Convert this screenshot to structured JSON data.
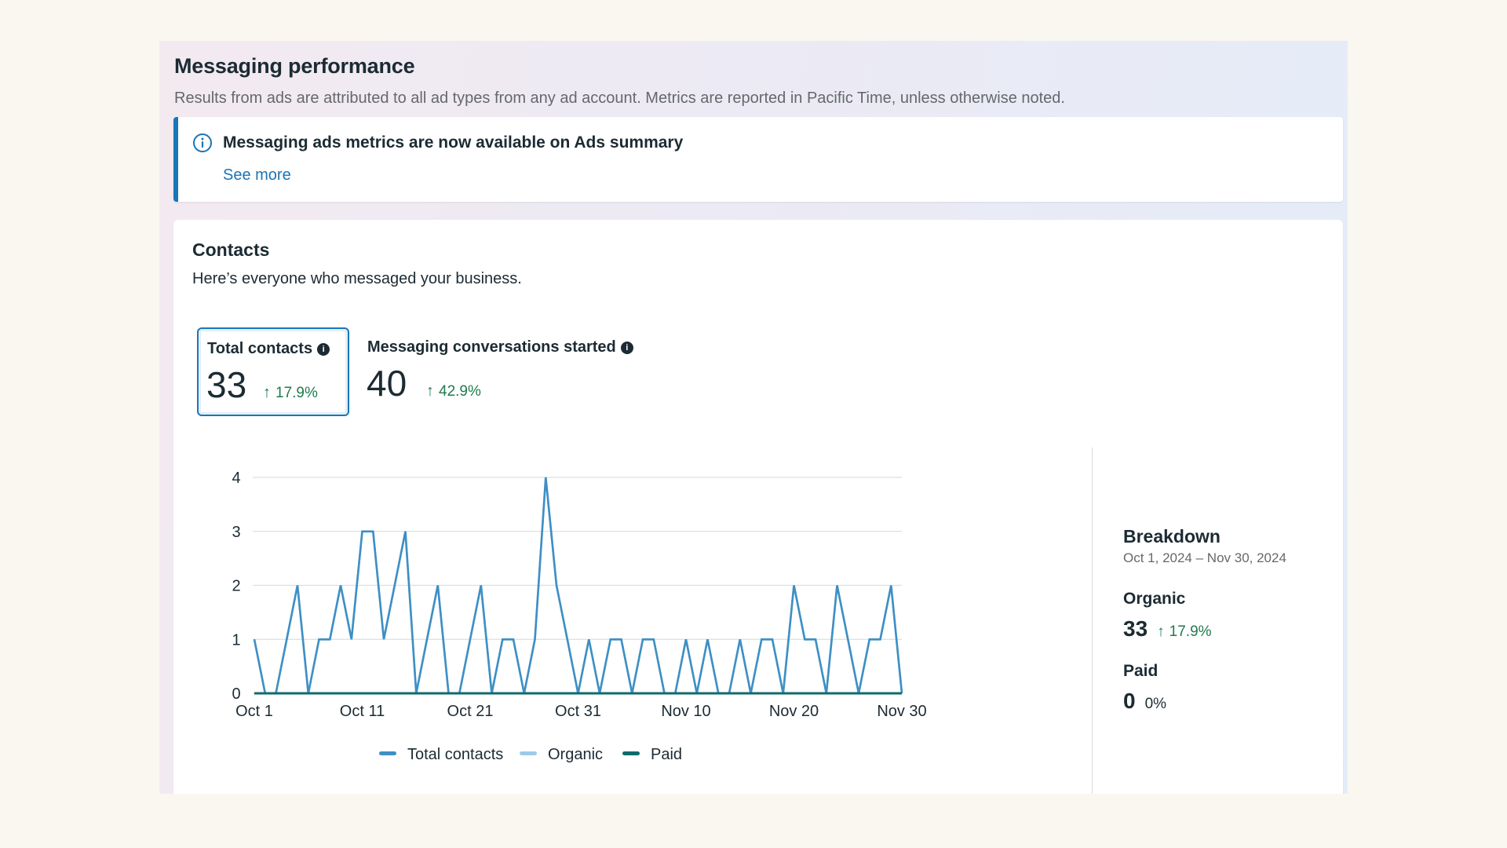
{
  "header": {
    "title": "Messaging performance",
    "subtitle": "Results from ads are attributed to all ad types from any ad account. Metrics are reported in Pacific Time, unless otherwise noted."
  },
  "notice": {
    "icon": "info-circle-icon",
    "title": "Messaging ads metrics are now available on Ads summary",
    "link": "See more"
  },
  "contacts": {
    "title": "Contacts",
    "subtitle": "Here’s everyone who messaged your business.",
    "metrics": [
      {
        "label": "Total contacts",
        "value": "33",
        "delta": "17.9%",
        "selected": true
      },
      {
        "label": "Messaging conversations started",
        "value": "40",
        "delta": "42.9%",
        "selected": false
      }
    ]
  },
  "breakdown": {
    "title": "Breakdown",
    "range": "Oct 1, 2024 – Nov 30, 2024",
    "organic_label": "Organic",
    "organic_value": "33",
    "organic_delta": "17.9%",
    "paid_label": "Paid",
    "paid_value": "0",
    "paid_delta": "0%"
  },
  "colors": {
    "total": "#3e8fc4",
    "organic": "#9ccbeb",
    "paid": "#0f6b6b",
    "grid": "#dcdfe3",
    "positive": "#1f7a4d",
    "accent": "#1877b8"
  },
  "chart_data": {
    "type": "line",
    "xlabel": "",
    "ylabel": "",
    "ylim": [
      0,
      4
    ],
    "y_ticks": [
      "0",
      "1",
      "2",
      "3",
      "4"
    ],
    "x_tick_labels": [
      "Oct 1",
      "Oct 11",
      "Oct 21",
      "Oct 31",
      "Nov 10",
      "Nov 20",
      "Nov 30"
    ],
    "x": [
      "Oct 1",
      "Oct 2",
      "Oct 3",
      "Oct 4",
      "Oct 5",
      "Oct 6",
      "Oct 7",
      "Oct 8",
      "Oct 9",
      "Oct 10",
      "Oct 11",
      "Oct 12",
      "Oct 13",
      "Oct 14",
      "Oct 15",
      "Oct 16",
      "Oct 17",
      "Oct 18",
      "Oct 19",
      "Oct 20",
      "Oct 21",
      "Oct 22",
      "Oct 23",
      "Oct 24",
      "Oct 25",
      "Oct 26",
      "Oct 27",
      "Oct 28",
      "Oct 29",
      "Oct 30",
      "Oct 31",
      "Nov 1",
      "Nov 2",
      "Nov 3",
      "Nov 4",
      "Nov 5",
      "Nov 6",
      "Nov 7",
      "Nov 8",
      "Nov 9",
      "Nov 10",
      "Nov 11",
      "Nov 12",
      "Nov 13",
      "Nov 14",
      "Nov 15",
      "Nov 16",
      "Nov 17",
      "Nov 18",
      "Nov 19",
      "Nov 20",
      "Nov 21",
      "Nov 22",
      "Nov 23",
      "Nov 24",
      "Nov 25",
      "Nov 26",
      "Nov 27",
      "Nov 28",
      "Nov 29",
      "Nov 30"
    ],
    "series": [
      {
        "name": "Total contacts",
        "values": [
          1,
          0,
          0,
          1,
          2,
          0,
          1,
          1,
          2,
          1,
          3,
          3,
          1,
          2,
          3,
          0,
          1,
          2,
          0,
          0,
          1,
          2,
          0,
          1,
          1,
          0,
          1,
          4,
          2,
          1,
          0,
          1,
          0,
          1,
          1,
          0,
          1,
          1,
          0,
          0,
          1,
          0,
          1,
          0,
          0,
          1,
          0,
          1,
          1,
          0,
          2,
          1,
          1,
          0,
          2,
          1,
          0,
          1,
          1,
          2,
          0
        ]
      },
      {
        "name": "Organic",
        "values": [
          1,
          0,
          0,
          1,
          2,
          0,
          1,
          1,
          2,
          1,
          3,
          3,
          1,
          2,
          3,
          0,
          1,
          2,
          0,
          0,
          1,
          2,
          0,
          1,
          1,
          0,
          1,
          4,
          2,
          1,
          0,
          1,
          0,
          1,
          1,
          0,
          1,
          1,
          0,
          0,
          1,
          0,
          1,
          0,
          0,
          1,
          0,
          1,
          1,
          0,
          2,
          1,
          1,
          0,
          2,
          1,
          0,
          1,
          1,
          2,
          0
        ]
      },
      {
        "name": "Paid",
        "values": [
          0,
          0,
          0,
          0,
          0,
          0,
          0,
          0,
          0,
          0,
          0,
          0,
          0,
          0,
          0,
          0,
          0,
          0,
          0,
          0,
          0,
          0,
          0,
          0,
          0,
          0,
          0,
          0,
          0,
          0,
          0,
          0,
          0,
          0,
          0,
          0,
          0,
          0,
          0,
          0,
          0,
          0,
          0,
          0,
          0,
          0,
          0,
          0,
          0,
          0,
          0,
          0,
          0,
          0,
          0,
          0,
          0,
          0,
          0,
          0,
          0
        ]
      }
    ],
    "legend": [
      "Total contacts",
      "Organic",
      "Paid"
    ],
    "legend_position": "bottom",
    "grid": true
  }
}
